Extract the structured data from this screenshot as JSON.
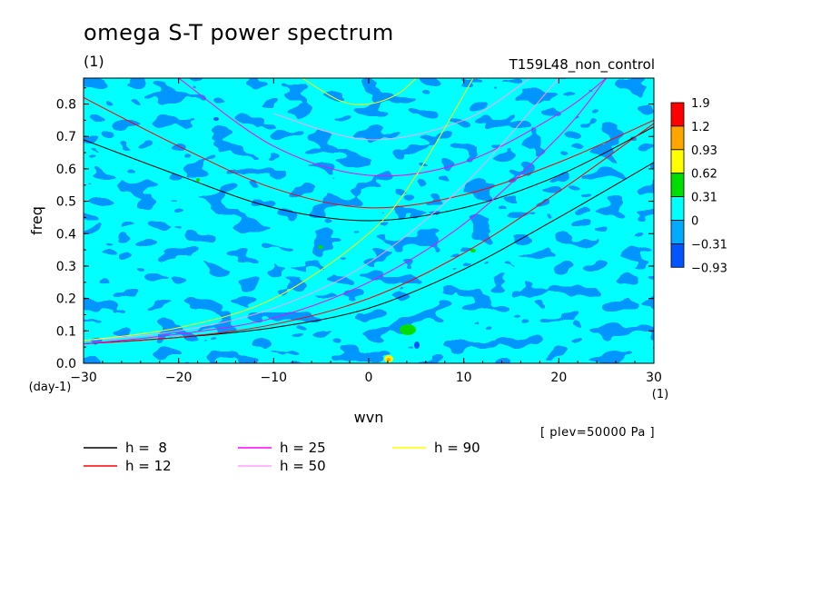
{
  "header": {
    "title": "omega S-T power spectrum",
    "units": "(1)",
    "run_id": "T159L48_non_control"
  },
  "footnote": "[ plev=50000 Pa ]",
  "colors": {
    "bg_fill": "#00ffff",
    "patch_fill": "#0095ff"
  },
  "chart_data": {
    "type": "heatmap",
    "title": "omega S-T power spectrum",
    "xlabel": "wvn",
    "x_unit": "(1)",
    "ylabel": "freq",
    "y_unit": "(day-1)",
    "xlim": [
      -30,
      30
    ],
    "ylim": [
      0,
      0.88
    ],
    "x_ticks": [
      -30,
      -20,
      -10,
      0,
      10,
      20,
      30
    ],
    "x_tick_labels": [
      "−30",
      "−20",
      "−10",
      "0",
      "10",
      "20",
      "30"
    ],
    "y_ticks": [
      0,
      0.1,
      0.2,
      0.3,
      0.4,
      0.5,
      0.6,
      0.7,
      0.8
    ],
    "y_tick_labels": [
      "0.0",
      "0.1",
      "0.2",
      "0.3",
      "0.4",
      "0.5",
      "0.6",
      "0.7",
      "0.8"
    ],
    "colorbar": {
      "levels": [
        "1.9",
        "1.2",
        "0.93",
        "0.62",
        "0.31",
        "0",
        "−0.31",
        "−0.93"
      ],
      "colors": [
        "#ff0000",
        "#ffa500",
        "#ffff00",
        "#00dd00",
        "#00ffff",
        "#00aaff",
        "#0055ff"
      ]
    },
    "dispersion_curves": [
      {
        "label": "h =  8",
        "h": 8,
        "color": "#000000",
        "kelvin_x": [
          -30,
          -20,
          -10,
          0,
          10,
          20,
          30
        ],
        "kelvin_y": [
          0.06,
          0.08,
          0.11,
          0.17,
          0.29,
          0.45,
          0.62
        ],
        "gravity_x": [
          -30,
          -20,
          -10,
          0,
          10,
          20,
          30
        ],
        "gravity_y": [
          0.69,
          0.58,
          0.48,
          0.44,
          0.48,
          0.58,
          0.73
        ]
      },
      {
        "label": "h = 12",
        "h": 12,
        "color": "#ff0000",
        "kelvin_x": [
          -30,
          -20,
          -10,
          0,
          10,
          20,
          30
        ],
        "kelvin_y": [
          0.06,
          0.08,
          0.12,
          0.2,
          0.34,
          0.53,
          0.74
        ],
        "gravity_x": [
          -30,
          -20,
          -10,
          0,
          10,
          20,
          30
        ],
        "gravity_y": [
          0.82,
          0.67,
          0.54,
          0.48,
          0.52,
          0.62,
          0.75
        ]
      },
      {
        "label": "h = 25",
        "h": 25,
        "color": "#ff00ff",
        "kelvin_x": [
          -30,
          -20,
          -10,
          0,
          10,
          20,
          25
        ],
        "kelvin_y": [
          0.06,
          0.09,
          0.14,
          0.25,
          0.43,
          0.7,
          0.88
        ],
        "gravity_x": [
          -20,
          -10,
          0,
          10,
          20,
          25
        ],
        "gravity_y": [
          0.88,
          0.67,
          0.58,
          0.62,
          0.77,
          0.88
        ]
      },
      {
        "label": "h = 50",
        "h": 50,
        "color": "#ff9eff",
        "kelvin_x": [
          -30,
          -20,
          -10,
          0,
          10,
          20
        ],
        "kelvin_y": [
          0.07,
          0.1,
          0.17,
          0.31,
          0.55,
          0.88
        ],
        "gravity_x": [
          -10,
          0,
          10,
          17
        ],
        "gravity_y": [
          0.77,
          0.69,
          0.75,
          0.88
        ]
      },
      {
        "label": "h = 90",
        "h": 90,
        "color": "#ffff00",
        "kelvin_x": [
          -30,
          -20,
          -10,
          0,
          5,
          11
        ],
        "kelvin_y": [
          0.07,
          0.11,
          0.2,
          0.4,
          0.58,
          0.88
        ],
        "gravity_x": [
          -7,
          -3,
          0,
          3,
          5
        ],
        "gravity_y": [
          0.88,
          0.81,
          0.8,
          0.83,
          0.88
        ]
      }
    ],
    "legend_placement": "below-plot",
    "grid": false
  }
}
